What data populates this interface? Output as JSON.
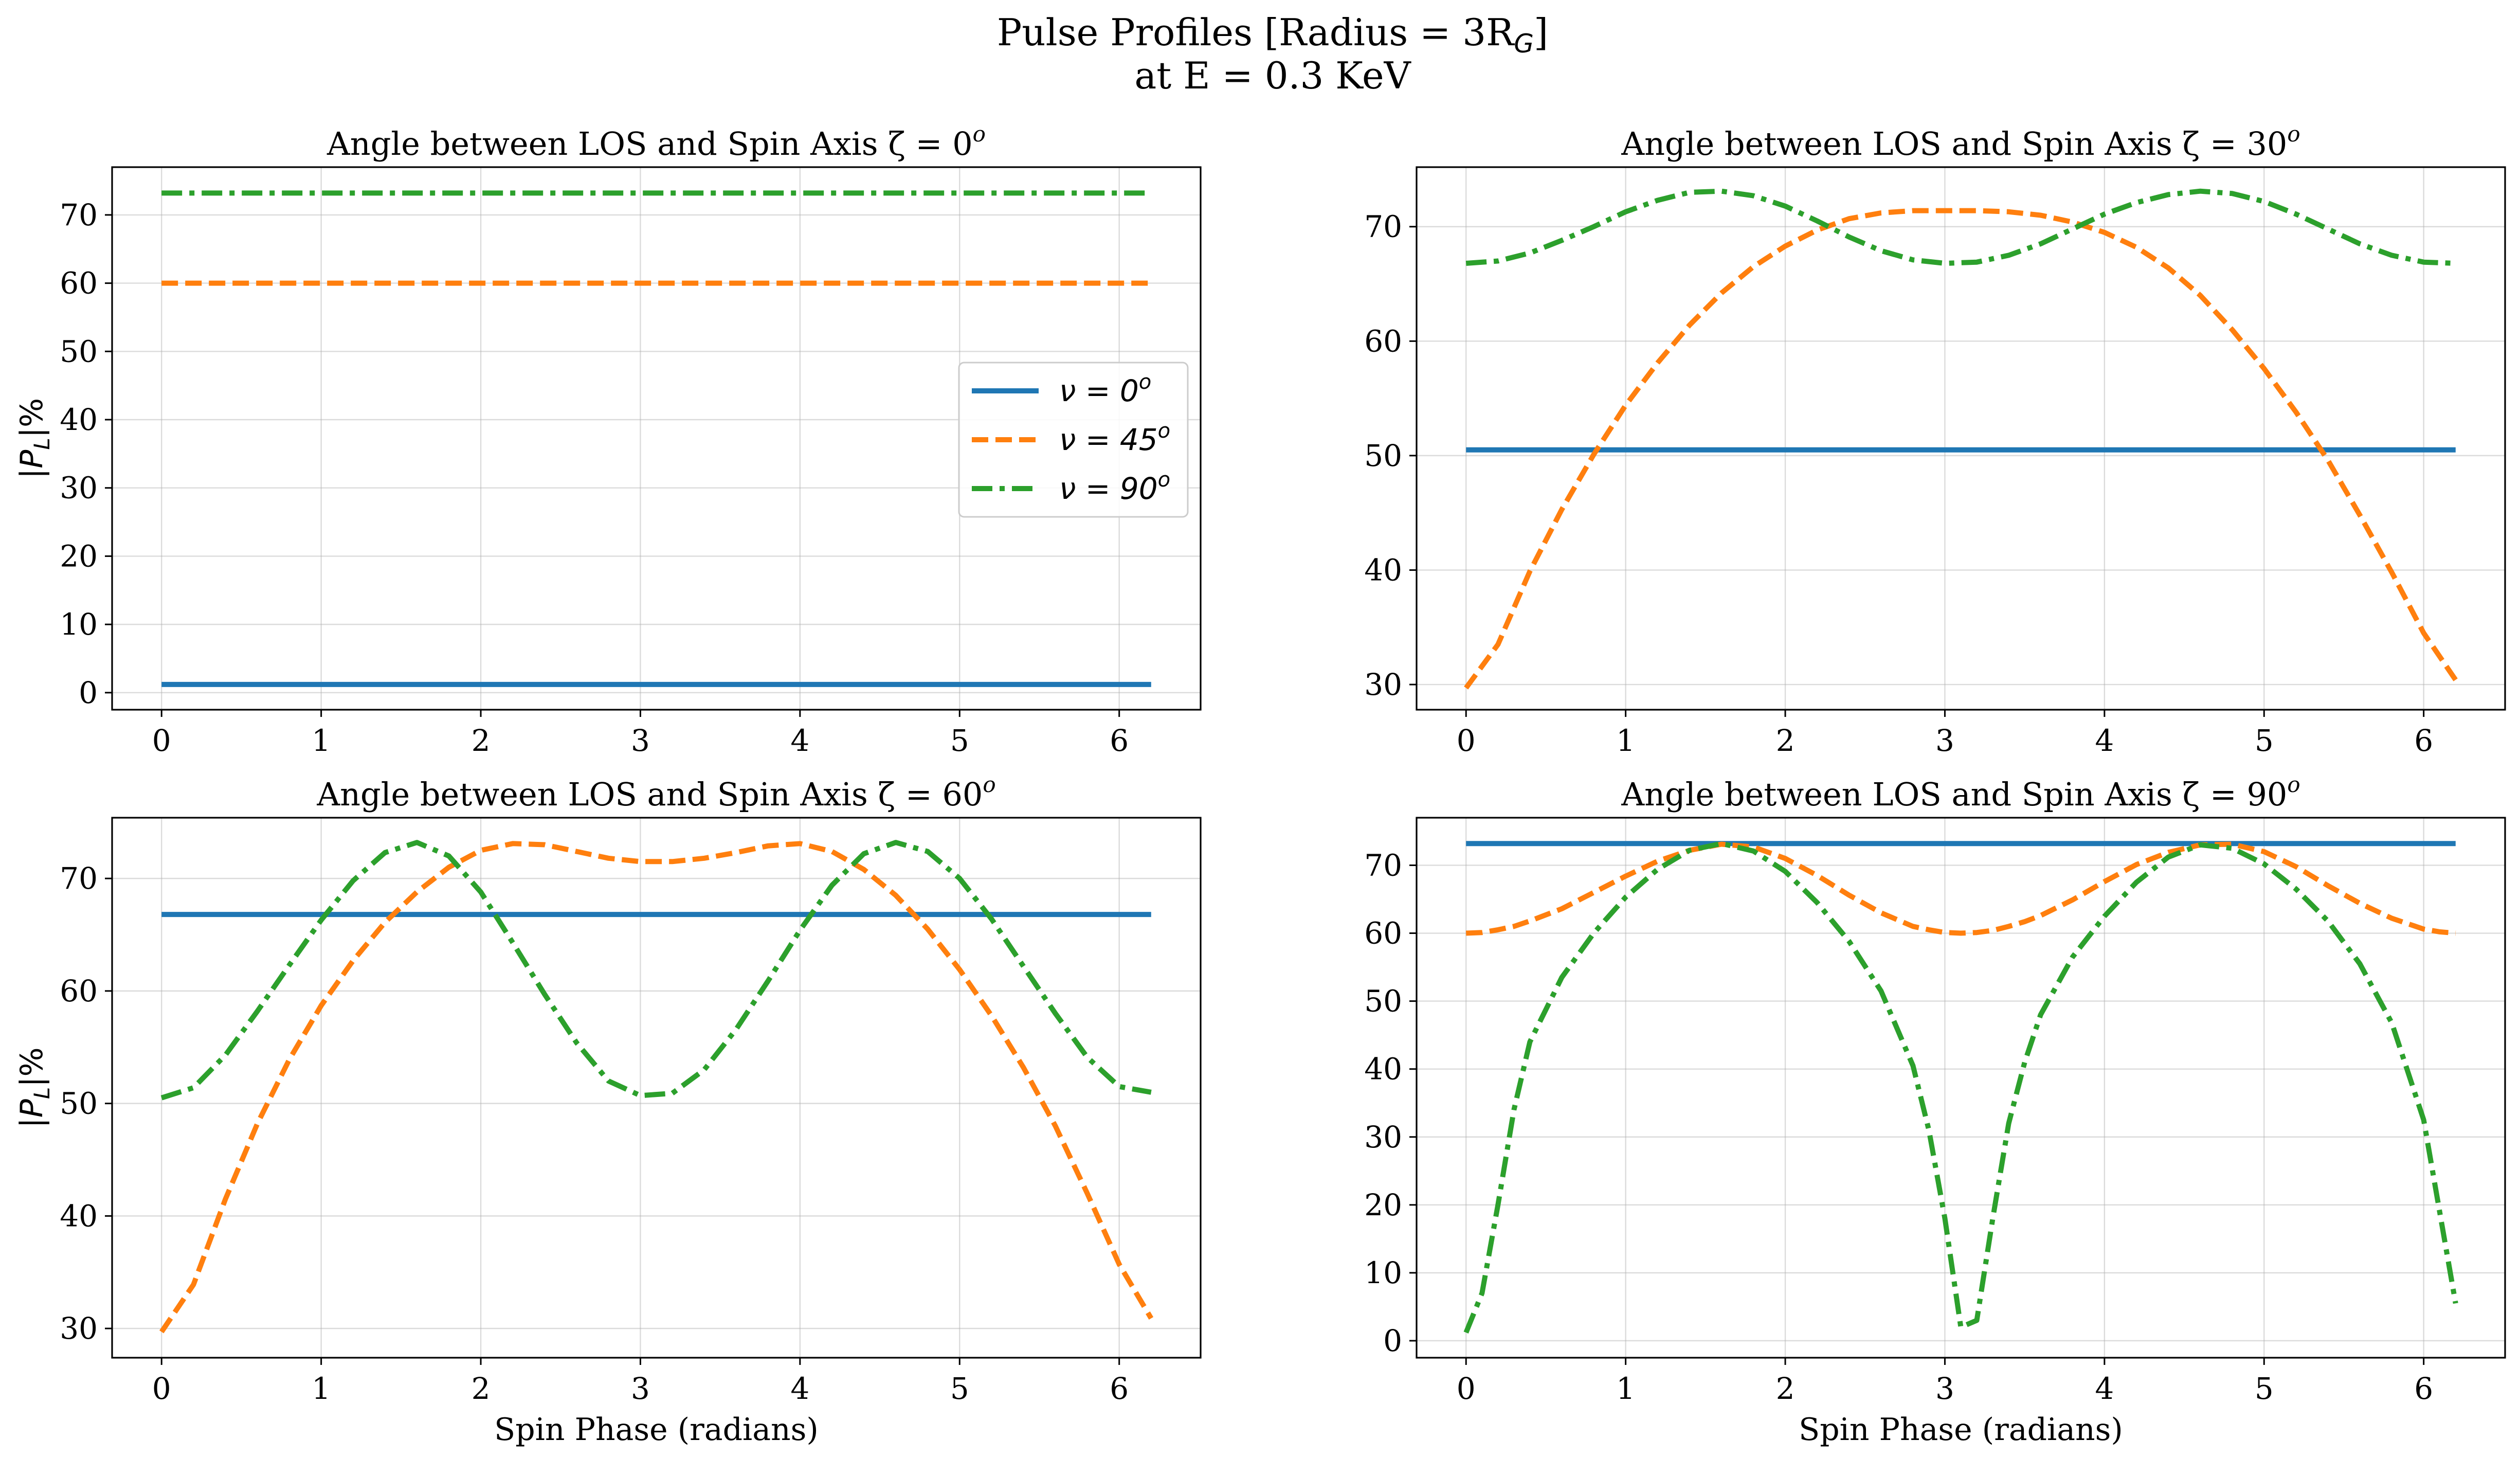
{
  "figure": {
    "title_line1": "Pulse Profiles [Radius = 3R",
    "title_line1_sub": "G",
    "title_line1_end": "]",
    "title_line2": "at E = 0.3 KeV"
  },
  "legend": {
    "placement": "center-right of first panel",
    "entries": [
      {
        "label": "ν = 0",
        "sup": "o",
        "color": "#1f77b4",
        "style": "solid"
      },
      {
        "label": "ν = 45",
        "sup": "o",
        "color": "#ff7f0e",
        "style": "dashed"
      },
      {
        "label": "ν = 90",
        "sup": "o",
        "color": "#2ca02c",
        "style": "dashdot"
      }
    ]
  },
  "chart_data": [
    {
      "type": "line",
      "title": "Angle between LOS and Spin Axis ζ = 0",
      "title_sup": "o",
      "xlabel": "",
      "ylabel": "|P_L|%",
      "xlim": [
        -0.31,
        6.51
      ],
      "ylim": [
        -2.5,
        77.0
      ],
      "xticks": [
        0,
        1,
        2,
        3,
        4,
        5,
        6
      ],
      "yticks": [
        0,
        10,
        20,
        30,
        40,
        50,
        60,
        70
      ],
      "grid": true,
      "x": [
        0,
        0.2,
        0.4,
        0.6,
        0.8,
        1.0,
        1.2,
        1.4,
        1.6,
        1.8,
        2.0,
        2.2,
        2.4,
        2.6,
        2.8,
        3.0,
        3.2,
        3.4,
        3.6,
        3.8,
        4.0,
        4.2,
        4.4,
        4.6,
        4.8,
        5.0,
        5.2,
        5.4,
        5.6,
        5.8,
        6.0,
        6.2
      ],
      "series": [
        {
          "name": "ν = 0°",
          "values": [
            1.2,
            1.2,
            1.2,
            1.2,
            1.2,
            1.2,
            1.2,
            1.2,
            1.2,
            1.2,
            1.2,
            1.2,
            1.2,
            1.2,
            1.2,
            1.2,
            1.2,
            1.2,
            1.2,
            1.2,
            1.2,
            1.2,
            1.2,
            1.2,
            1.2,
            1.2,
            1.2,
            1.2,
            1.2,
            1.2,
            1.2,
            1.2
          ]
        },
        {
          "name": "ν = 45°",
          "values": [
            60,
            60,
            60,
            60,
            60,
            60,
            60,
            60,
            60,
            60,
            60,
            60,
            60,
            60,
            60,
            60,
            60,
            60,
            60,
            60,
            60,
            60,
            60,
            60,
            60,
            60,
            60,
            60,
            60,
            60,
            60,
            60
          ]
        },
        {
          "name": "ν = 90°",
          "values": [
            73.2,
            73.2,
            73.2,
            73.2,
            73.2,
            73.2,
            73.2,
            73.2,
            73.2,
            73.2,
            73.2,
            73.2,
            73.2,
            73.2,
            73.2,
            73.2,
            73.2,
            73.2,
            73.2,
            73.2,
            73.2,
            73.2,
            73.2,
            73.2,
            73.2,
            73.2,
            73.2,
            73.2,
            73.2,
            73.2,
            73.2,
            73.2
          ]
        }
      ]
    },
    {
      "type": "line",
      "title": "Angle between LOS and Spin Axis ζ = 30",
      "title_sup": "o",
      "xlabel": "",
      "ylabel": "",
      "xlim": [
        -0.31,
        6.51
      ],
      "ylim": [
        27.8,
        75.2
      ],
      "xticks": [
        0,
        1,
        2,
        3,
        4,
        5,
        6
      ],
      "yticks": [
        30,
        40,
        50,
        60,
        70
      ],
      "grid": true,
      "x": [
        0,
        0.2,
        0.4,
        0.6,
        0.8,
        1.0,
        1.2,
        1.4,
        1.6,
        1.8,
        2.0,
        2.2,
        2.4,
        2.6,
        2.8,
        3.0,
        3.2,
        3.4,
        3.6,
        3.8,
        4.0,
        4.2,
        4.4,
        4.6,
        4.8,
        5.0,
        5.2,
        5.4,
        5.6,
        5.8,
        6.0,
        6.2
      ],
      "series": [
        {
          "name": "ν = 0°",
          "values": [
            50.5,
            50.5,
            50.5,
            50.5,
            50.5,
            50.5,
            50.5,
            50.5,
            50.5,
            50.5,
            50.5,
            50.5,
            50.5,
            50.5,
            50.5,
            50.5,
            50.5,
            50.5,
            50.5,
            50.5,
            50.5,
            50.5,
            50.5,
            50.5,
            50.5,
            50.5,
            50.5,
            50.5,
            50.5,
            50.5,
            50.5,
            50.5
          ]
        },
        {
          "name": "ν = 45°",
          "values": [
            29.7,
            33.5,
            39.9,
            45.3,
            50.1,
            54.4,
            58.1,
            61.4,
            64.2,
            66.5,
            68.3,
            69.7,
            70.7,
            71.2,
            71.4,
            71.4,
            71.4,
            71.3,
            71.0,
            70.4,
            69.5,
            68.2,
            66.4,
            64.0,
            61.0,
            57.6,
            53.8,
            49.6,
            44.8,
            39.8,
            34.5,
            30.4
          ]
        },
        {
          "name": "ν = 90°",
          "values": [
            66.8,
            67.0,
            67.7,
            68.8,
            70.0,
            71.3,
            72.3,
            73.0,
            73.1,
            72.7,
            71.8,
            70.5,
            69.1,
            67.9,
            67.1,
            66.8,
            66.9,
            67.5,
            68.5,
            69.8,
            71.1,
            72.1,
            72.8,
            73.1,
            72.9,
            72.2,
            71.1,
            69.8,
            68.5,
            67.5,
            66.9,
            66.8
          ]
        }
      ]
    },
    {
      "type": "line",
      "title": "Angle between LOS and Spin Axis ζ = 60",
      "title_sup": "o",
      "xlabel": "Spin Phase (radians)",
      "ylabel": "|P_L|%",
      "xlim": [
        -0.31,
        6.51
      ],
      "ylim": [
        27.4,
        75.4
      ],
      "xticks": [
        0,
        1,
        2,
        3,
        4,
        5,
        6
      ],
      "yticks": [
        30,
        40,
        50,
        60,
        70
      ],
      "grid": true,
      "x": [
        0,
        0.2,
        0.4,
        0.6,
        0.8,
        1.0,
        1.2,
        1.4,
        1.6,
        1.8,
        2.0,
        2.2,
        2.4,
        2.6,
        2.8,
        3.0,
        3.2,
        3.4,
        3.6,
        3.8,
        4.0,
        4.2,
        4.4,
        4.6,
        4.8,
        5.0,
        5.2,
        5.4,
        5.6,
        5.8,
        6.0,
        6.2
      ],
      "series": [
        {
          "name": "ν = 0°",
          "values": [
            66.8,
            66.8,
            66.8,
            66.8,
            66.8,
            66.8,
            66.8,
            66.8,
            66.8,
            66.8,
            66.8,
            66.8,
            66.8,
            66.8,
            66.8,
            66.8,
            66.8,
            66.8,
            66.8,
            66.8,
            66.8,
            66.8,
            66.8,
            66.8,
            66.8,
            66.8,
            66.8,
            66.8,
            66.8,
            66.8,
            66.8,
            66.8
          ]
        },
        {
          "name": "ν = 45°",
          "values": [
            29.7,
            33.9,
            41.5,
            48.2,
            53.9,
            58.7,
            62.7,
            66.1,
            68.8,
            71.0,
            72.5,
            73.1,
            73.0,
            72.4,
            71.8,
            71.5,
            71.5,
            71.8,
            72.3,
            72.9,
            73.1,
            72.4,
            70.8,
            68.5,
            65.5,
            61.9,
            57.8,
            53.2,
            48.0,
            42.0,
            35.7,
            30.9
          ]
        },
        {
          "name": "ν = 90°",
          "values": [
            50.5,
            51.4,
            54.3,
            58.2,
            62.3,
            66.3,
            69.8,
            72.3,
            73.2,
            72.0,
            68.8,
            64.3,
            59.7,
            55.4,
            52.0,
            50.7,
            50.9,
            53.0,
            56.6,
            60.9,
            65.4,
            69.4,
            72.2,
            73.2,
            72.4,
            70.0,
            66.4,
            62.2,
            58.0,
            54.1,
            51.5,
            51.0
          ]
        }
      ]
    },
    {
      "type": "line",
      "title": "Angle between LOS and Spin Axis ζ = 90",
      "title_sup": "o",
      "xlabel": "Spin Phase (radians)",
      "ylabel": "",
      "xlim": [
        -0.31,
        6.51
      ],
      "ylim": [
        -2.5,
        77.0
      ],
      "xticks": [
        0,
        1,
        2,
        3,
        4,
        5,
        6
      ],
      "yticks": [
        0,
        10,
        20,
        30,
        40,
        50,
        60,
        70
      ],
      "grid": true,
      "x": [
        0,
        0.1,
        0.2,
        0.3,
        0.4,
        0.6,
        0.8,
        1.0,
        1.2,
        1.4,
        1.6,
        1.8,
        2.0,
        2.2,
        2.4,
        2.6,
        2.8,
        2.9,
        3.0,
        3.1,
        3.2,
        3.3,
        3.4,
        3.5,
        3.6,
        3.8,
        4.0,
        4.2,
        4.4,
        4.6,
        4.8,
        5.0,
        5.2,
        5.4,
        5.6,
        5.8,
        6.0,
        6.1,
        6.2
      ],
      "series": [
        {
          "name": "ν = 0°",
          "values": [
            73.2,
            73.2,
            73.2,
            73.2,
            73.2,
            73.2,
            73.2,
            73.2,
            73.2,
            73.2,
            73.2,
            73.2,
            73.2,
            73.2,
            73.2,
            73.2,
            73.2,
            73.2,
            73.2,
            73.2,
            73.2,
            73.2,
            73.2,
            73.2,
            73.2,
            73.2,
            73.2,
            73.2,
            73.2,
            73.2,
            73.2,
            73.2,
            73.2,
            73.2,
            73.2,
            73.2,
            73.2,
            73.2,
            73.2
          ]
        },
        {
          "name": "ν = 45°",
          "values": [
            60.0,
            60.1,
            60.5,
            61.0,
            61.8,
            63.6,
            66.0,
            68.4,
            70.6,
            72.2,
            73.1,
            72.7,
            71.0,
            68.5,
            65.6,
            63.0,
            61.0,
            60.5,
            60.1,
            60.0,
            60.1,
            60.4,
            61.0,
            61.7,
            62.6,
            64.9,
            67.6,
            70.1,
            71.9,
            73.0,
            73.1,
            72.0,
            69.8,
            67.0,
            64.4,
            62.2,
            60.6,
            60.2,
            60.0
          ]
        },
        {
          "name": "ν = 90°",
          "values": [
            1.2,
            7.0,
            20.0,
            34.0,
            44.0,
            53.5,
            60.0,
            65.3,
            69.4,
            72.2,
            73.2,
            72.1,
            69.1,
            64.5,
            58.8,
            51.5,
            40.5,
            31.0,
            18.0,
            2.0,
            3.0,
            18.0,
            32.0,
            41.0,
            48.0,
            56.5,
            62.5,
            67.5,
            71.2,
            73.0,
            72.5,
            70.2,
            66.5,
            61.8,
            55.5,
            46.8,
            32.5,
            19.0,
            5.5
          ]
        }
      ]
    }
  ]
}
